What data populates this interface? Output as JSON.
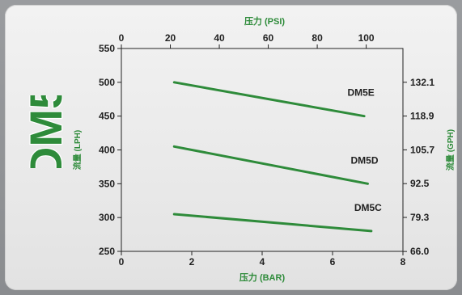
{
  "model": "DM5",
  "colors": {
    "series": "#2e8b3a",
    "axis_title": "#2e8b3a",
    "axis": "#222222",
    "model_text": "#2e8b3a"
  },
  "chart_data": {
    "type": "line",
    "axes": {
      "x_bottom": {
        "label": "压力 (BAR)",
        "range": [
          0,
          8
        ],
        "ticks": [
          "0",
          "2",
          "4",
          "6",
          "8"
        ]
      },
      "x_top": {
        "label": "压力 (PSI)",
        "range": [
          0,
          115
        ],
        "ticks": [
          "0",
          "20",
          "40",
          "60",
          "80",
          "100"
        ]
      },
      "y_left": {
        "label": "流量 (LPH)",
        "range": [
          250,
          550
        ],
        "ticks": [
          "250",
          "300",
          "350",
          "400",
          "450",
          "500",
          "550"
        ]
      },
      "y_right": {
        "label": "流量 (GPH)",
        "ticks": [
          "66.0",
          "79.3",
          "92.5",
          "105.7",
          "118.9",
          "132.1"
        ]
      }
    },
    "grid": false,
    "series": [
      {
        "name": "DM5E",
        "x": [
          1.5,
          6.9
        ],
        "y": [
          500,
          450
        ]
      },
      {
        "name": "DM5D",
        "x": [
          1.5,
          7.0
        ],
        "y": [
          405,
          350
        ]
      },
      {
        "name": "DM5C",
        "x": [
          1.5,
          7.1
        ],
        "y": [
          305,
          280
        ]
      }
    ]
  }
}
